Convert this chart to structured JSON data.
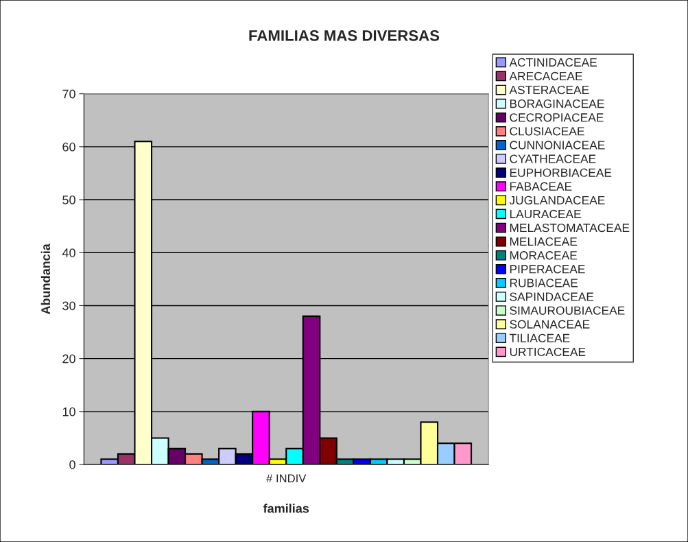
{
  "chart_data": {
    "type": "bar",
    "title": "FAMILIAS MAS DIVERSAS",
    "xlabel": "familias",
    "ylabel": "Abundancia",
    "categories": [
      "# INDIV"
    ],
    "series": [
      {
        "name": "ACTINIDACEAE",
        "color": "#9999ff",
        "values": [
          1
        ]
      },
      {
        "name": "ARECACEAE",
        "color": "#993366",
        "values": [
          2
        ]
      },
      {
        "name": "ASTERACEAE",
        "color": "#ffffcc",
        "values": [
          61
        ]
      },
      {
        "name": "BORAGINACEAE",
        "color": "#ccffff",
        "values": [
          5
        ]
      },
      {
        "name": "CECROPIACEAE",
        "color": "#660066",
        "values": [
          3
        ]
      },
      {
        "name": "CLUSIACEAE",
        "color": "#ff8080",
        "values": [
          2
        ]
      },
      {
        "name": "CUNNONIACEAE",
        "color": "#0066cc",
        "values": [
          1
        ]
      },
      {
        "name": "CYATHEACEAE",
        "color": "#ccccff",
        "values": [
          3
        ]
      },
      {
        "name": "EUPHORBIACEAE",
        "color": "#000080",
        "values": [
          2
        ]
      },
      {
        "name": "FABACEAE",
        "color": "#ff00ff",
        "values": [
          10
        ]
      },
      {
        "name": "JUGLANDACEAE",
        "color": "#ffff00",
        "values": [
          1
        ]
      },
      {
        "name": "LAURACEAE",
        "color": "#00ffff",
        "values": [
          3
        ]
      },
      {
        "name": "MELASTOMATACEAE",
        "color": "#800080",
        "values": [
          28
        ]
      },
      {
        "name": "MELIACEAE",
        "color": "#800000",
        "values": [
          5
        ]
      },
      {
        "name": "MORACEAE",
        "color": "#008080",
        "values": [
          1
        ]
      },
      {
        "name": "PIPERACEAE",
        "color": "#0000ff",
        "values": [
          1
        ]
      },
      {
        "name": "RUBIACEAE",
        "color": "#00ccff",
        "values": [
          1
        ]
      },
      {
        "name": "SAPINDACEAE",
        "color": "#ccffff",
        "values": [
          1
        ]
      },
      {
        "name": "SIMAUROUBIACEAE",
        "color": "#ccffcc",
        "values": [
          1
        ]
      },
      {
        "name": "SOLANACEAE",
        "color": "#ffff99",
        "values": [
          8
        ]
      },
      {
        "name": "TILIACEAE",
        "color": "#99ccff",
        "values": [
          4
        ]
      },
      {
        "name": "URTICACEAE",
        "color": "#ff99cc",
        "values": [
          4
        ]
      }
    ],
    "ylim": [
      0,
      70
    ],
    "yticks": [
      0,
      10,
      20,
      30,
      40,
      50,
      60,
      70
    ],
    "grid": "y",
    "legend": "right"
  }
}
